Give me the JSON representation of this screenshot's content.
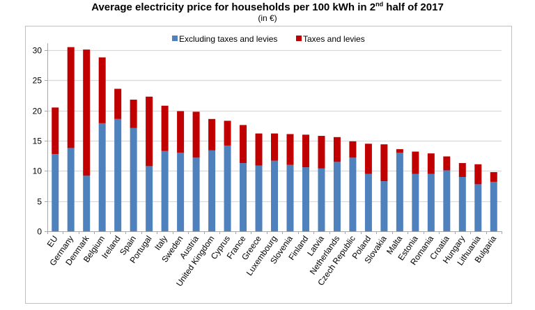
{
  "chart_data": {
    "type": "bar",
    "stacked": true,
    "title": "Average electricity price for households per 100 kWh in 2nd half of 2017",
    "title_parts": {
      "pre": "Average electricity price for households per 100 kWh in 2",
      "sup": "nd",
      "post": " half of 2017"
    },
    "subtitle": "(in €)",
    "xlabel": "",
    "ylabel": "",
    "ylim": [
      0,
      30
    ],
    "yticks": [
      0,
      5,
      10,
      15,
      20,
      25,
      30
    ],
    "grid": true,
    "legend_position": "top-center",
    "categories": [
      "EU",
      "Germany",
      "Denmark",
      "Belgium",
      "Ireland",
      "Spain",
      "Portugal",
      "Italy",
      "Sweden",
      "Austria",
      "United Kingdom",
      "Cyprus",
      "France",
      "Greece",
      "Luxembourg",
      "Slovenia",
      "Finland",
      "Latvia",
      "Netherlands",
      "Czech Republic",
      "Poland",
      "Slovakia",
      "Malta",
      "Estonia",
      "Romania",
      "Croatia",
      "Hungary",
      "Lithuania",
      "Bulgaria"
    ],
    "series": [
      {
        "name": "Excluding taxes and levies",
        "color": "#4F81BD",
        "values": [
          12.8,
          13.8,
          9.2,
          17.9,
          18.6,
          17.1,
          10.8,
          13.3,
          13.0,
          12.2,
          13.4,
          14.2,
          11.3,
          10.9,
          11.7,
          11.0,
          10.6,
          10.4,
          11.5,
          12.2,
          9.5,
          8.3,
          13.0,
          9.5,
          9.5,
          10.1,
          9.0,
          7.8,
          8.2
        ]
      },
      {
        "name": "Taxes and levies",
        "color": "#C00000",
        "values": [
          7.7,
          16.7,
          20.9,
          10.9,
          5.0,
          4.7,
          11.5,
          7.5,
          6.9,
          7.6,
          5.2,
          4.1,
          6.3,
          5.3,
          4.5,
          5.1,
          5.4,
          5.4,
          4.1,
          2.7,
          5.0,
          6.1,
          0.6,
          3.7,
          3.4,
          2.3,
          2.3,
          3.3,
          1.6
        ]
      }
    ]
  },
  "colors": {
    "grid": "#D9D9D9",
    "axis": "#A6A6A6",
    "frame": "#BFBFBF"
  }
}
